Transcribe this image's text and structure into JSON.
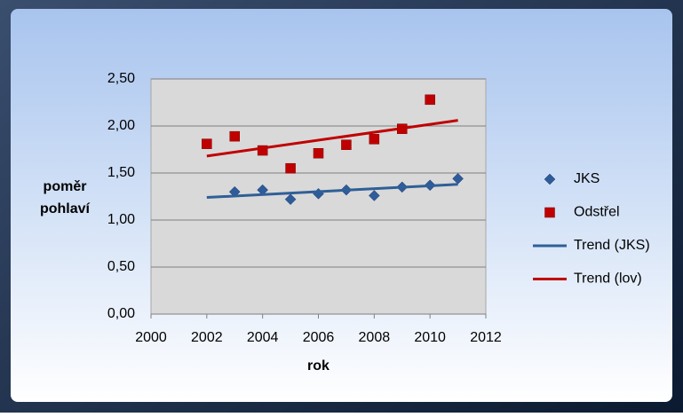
{
  "chart_data": {
    "type": "scatter",
    "x_label": "rok",
    "y_label": [
      "poměr",
      "pohlaví"
    ],
    "xlim": [
      2000,
      2012
    ],
    "xticks": [
      2000,
      2002,
      2004,
      2006,
      2008,
      2010,
      2012
    ],
    "ylim": [
      0,
      2.5
    ],
    "yticks": [
      {
        "value": 0,
        "label": "0,00"
      },
      {
        "value": 0.5,
        "label": "0,50"
      },
      {
        "value": 1,
        "label": "1,00"
      },
      {
        "value": 1.5,
        "label": "1,50"
      },
      {
        "value": 2,
        "label": "2,00"
      },
      {
        "value": 2.5,
        "label": "2,50"
      }
    ],
    "grid": true,
    "legend": "right",
    "series": [
      {
        "name": "JKS",
        "type": "scatter",
        "marker": "diamond",
        "color": "#2e5b9a",
        "x": [
          2003,
          2004,
          2005,
          2006,
          2007,
          2008,
          2009,
          2010,
          2011
        ],
        "values": [
          1.3,
          1.32,
          1.22,
          1.28,
          1.32,
          1.26,
          1.35,
          1.37,
          1.44
        ]
      },
      {
        "name": "Odstřel",
        "type": "scatter",
        "marker": "square",
        "color": "#c00000",
        "x": [
          2002,
          2003,
          2004,
          2005,
          2006,
          2007,
          2008,
          2009,
          2010
        ],
        "values": [
          1.81,
          1.89,
          1.74,
          1.55,
          1.71,
          1.8,
          1.86,
          1.97,
          2.28
        ]
      },
      {
        "name": "Trend (JKS)",
        "type": "line",
        "color": "#2f5f97",
        "x": [
          2002,
          2011
        ],
        "values": [
          1.24,
          1.38
        ]
      },
      {
        "name": "Trend (lov)",
        "type": "line",
        "color": "#c00000",
        "x": [
          2002,
          2011
        ],
        "values": [
          1.68,
          2.06
        ]
      }
    ]
  }
}
